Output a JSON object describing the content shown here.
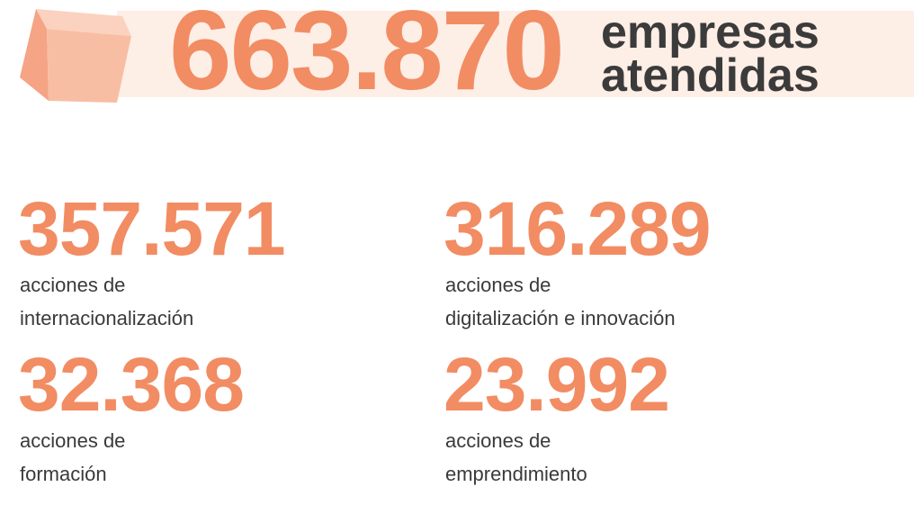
{
  "header": {
    "number": "663.870",
    "label": [
      "empresas",
      "atendidas"
    ]
  },
  "stats": [
    {
      "number": "357.571",
      "label": [
        "acciones de",
        "internacionalización"
      ]
    },
    {
      "number": "316.289",
      "label": [
        "acciones de",
        "digitalización e innovación"
      ]
    },
    {
      "number": "32.368",
      "label": [
        "acciones de",
        "formación"
      ]
    },
    {
      "number": "23.992",
      "label": [
        "acciones de",
        "emprendimiento"
      ]
    }
  ]
}
